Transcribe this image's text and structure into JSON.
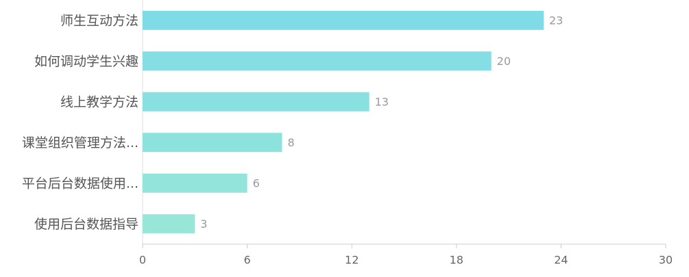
{
  "chart_data": {
    "type": "bar",
    "orientation": "horizontal",
    "categories": [
      "师生互动方法",
      "如何调动学生兴趣",
      "线上教学方法",
      "课堂组织管理方法...",
      "平台后台数据使用...",
      "使用后台数据指导"
    ],
    "values": [
      23,
      20,
      13,
      8,
      6,
      3
    ],
    "colors": [
      "#7fdce6",
      "#84dee4",
      "#89e0e1",
      "#8ee2dd",
      "#93e4da",
      "#98e6d7"
    ],
    "xlim": [
      0,
      30
    ],
    "xticks": [
      0,
      6,
      12,
      18,
      24,
      30
    ]
  }
}
